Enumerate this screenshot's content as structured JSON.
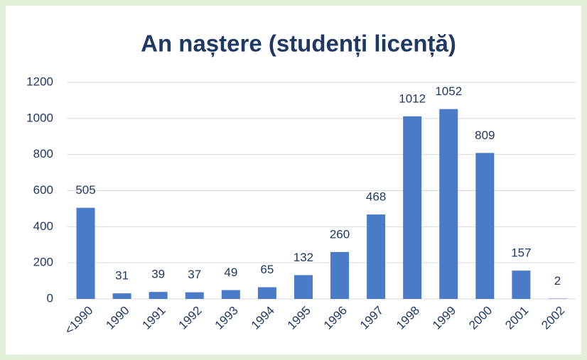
{
  "chart_data": {
    "type": "bar",
    "title": "An naștere (studenți licență)",
    "categories": [
      "<1990",
      "1990",
      "1991",
      "1992",
      "1993",
      "1994",
      "1995",
      "1996",
      "1997",
      "1998",
      "1999",
      "2000",
      "2001",
      "2002"
    ],
    "values": [
      505,
      31,
      39,
      37,
      49,
      65,
      132,
      260,
      468,
      1012,
      1052,
      809,
      157,
      2
    ],
    "color": "#4a7bc8",
    "ylim": [
      0,
      1200
    ],
    "yticks": [
      0,
      200,
      400,
      600,
      800,
      1000,
      1200
    ],
    "grid": true
  }
}
